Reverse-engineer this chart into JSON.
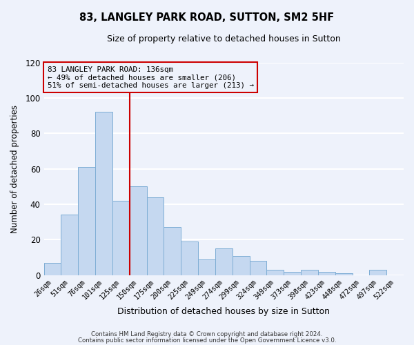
{
  "title": "83, LANGLEY PARK ROAD, SUTTON, SM2 5HF",
  "subtitle": "Size of property relative to detached houses in Sutton",
  "xlabel": "Distribution of detached houses by size in Sutton",
  "ylabel": "Number of detached properties",
  "bar_labels": [
    "26sqm",
    "51sqm",
    "76sqm",
    "101sqm",
    "125sqm",
    "150sqm",
    "175sqm",
    "200sqm",
    "225sqm",
    "249sqm",
    "274sqm",
    "299sqm",
    "324sqm",
    "349sqm",
    "373sqm",
    "398sqm",
    "423sqm",
    "448sqm",
    "472sqm",
    "497sqm",
    "522sqm"
  ],
  "bar_values": [
    7,
    34,
    61,
    92,
    42,
    50,
    44,
    27,
    19,
    9,
    15,
    11,
    8,
    3,
    2,
    3,
    2,
    1,
    0,
    3,
    0
  ],
  "bar_color": "#c5d8f0",
  "bar_edge_color": "#7dadd4",
  "ylim": [
    0,
    120
  ],
  "yticks": [
    0,
    20,
    40,
    60,
    80,
    100,
    120
  ],
  "vline_x_index": 4.5,
  "vline_color": "#cc0000",
  "box_text_line1": "83 LANGLEY PARK ROAD: 136sqm",
  "box_text_line2": "← 49% of detached houses are smaller (206)",
  "box_text_line3": "51% of semi-detached houses are larger (213) →",
  "box_color": "#cc0000",
  "footer_line1": "Contains HM Land Registry data © Crown copyright and database right 2024.",
  "footer_line2": "Contains public sector information licensed under the Open Government Licence v3.0.",
  "background_color": "#eef2fb",
  "grid_color": "#d0d8ee"
}
